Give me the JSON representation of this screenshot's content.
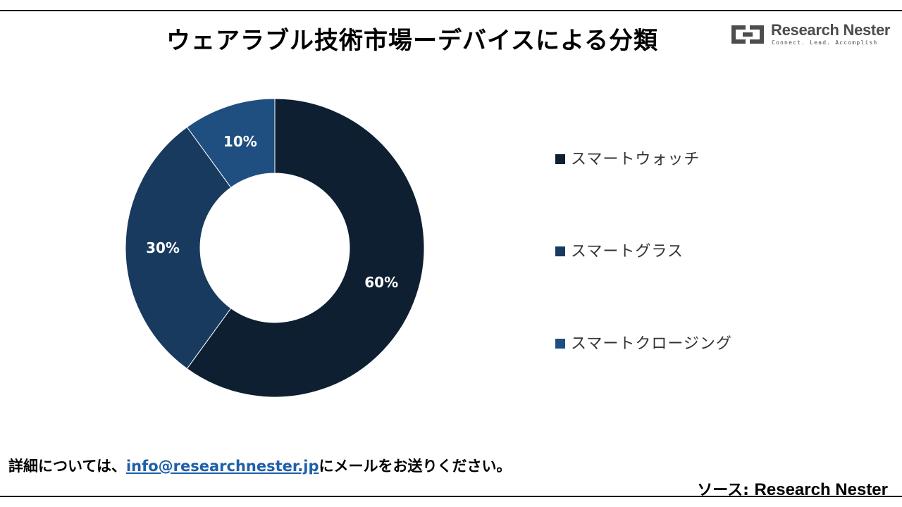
{
  "title": "ウェアラブル技術市場ーデバイスによる分類",
  "logo": {
    "name": "Research Nester",
    "tagline": "Connect. Lead. Accomplish"
  },
  "chart_data": {
    "type": "pie",
    "donut": true,
    "title": "",
    "categories": [
      "スマートウォッチ",
      "スマートグラス",
      "スマートクロージング"
    ],
    "values": [
      60,
      30,
      10
    ],
    "data_labels": [
      "60%",
      "30%",
      "10%"
    ],
    "colors": [
      "#0d1f31",
      "#183a5e",
      "#1f4f80"
    ],
    "legend_placement": "right"
  },
  "footer": {
    "note_prefix": "詳細については、",
    "email": "info@researchnester.jp",
    "note_suffix": "にメールをお送りください。",
    "source_label": "ソース: ",
    "source_name": "Research Nester"
  }
}
